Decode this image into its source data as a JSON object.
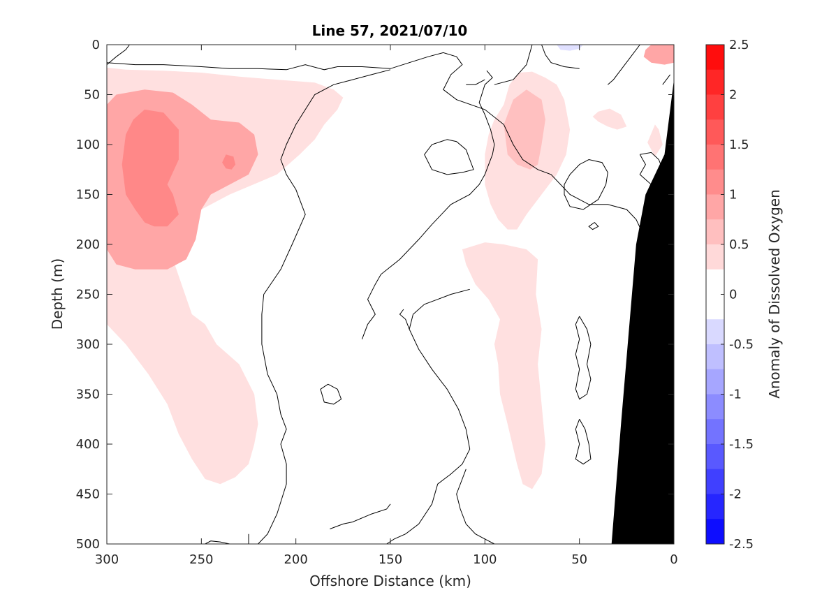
{
  "chart_data": {
    "type": "heatmap",
    "subtype": "filled-contour-section",
    "title": "Line 57, 2021/07/10",
    "xlabel": "Offshore Distance (km)",
    "ylabel": "Depth (m)",
    "colorbar_label": "Anomaly of Dissolved Oxygen",
    "xlim": [
      300,
      0
    ],
    "x_reversed": true,
    "ylim": [
      0,
      500
    ],
    "y_reversed": true,
    "x_ticks": [
      300,
      250,
      200,
      150,
      100,
      50,
      0
    ],
    "y_ticks": [
      0,
      50,
      100,
      150,
      200,
      250,
      300,
      350,
      400,
      450,
      500
    ],
    "colorbar": {
      "range": [
        -2.5,
        2.5
      ],
      "step": 0.25,
      "ticks": [
        2.5,
        2,
        1.5,
        1,
        0.5,
        0,
        -0.5,
        -1,
        -1.5,
        -2,
        -2.5
      ],
      "tick_labels": [
        "2.5",
        "2",
        "1.5",
        "1",
        "0.5",
        "0",
        "-0.5",
        "-1",
        "-1.5",
        "-2",
        "-2.5"
      ],
      "colormap": "blue-white-red"
    },
    "colors": {
      "level_0_25": "#ffe0e0",
      "level_0_5": "#ffc0c0",
      "level_0_75": "#ffa6a6",
      "level_1": "#ff8888",
      "negative": "#e0e0ff",
      "bathymetry": "#000000",
      "contour": "#000000"
    },
    "regions": [
      {
        "name": "offshore-positive-anomaly",
        "level": 0.25,
        "points": [
          [
            303,
            23
          ],
          [
            290,
            25
          ],
          [
            270,
            26
          ],
          [
            250,
            28
          ],
          [
            230,
            32
          ],
          [
            210,
            35
          ],
          [
            190,
            38
          ],
          [
            180,
            45
          ],
          [
            175,
            53
          ],
          [
            178,
            65
          ],
          [
            185,
            80
          ],
          [
            190,
            95
          ],
          [
            198,
            110
          ],
          [
            210,
            130
          ],
          [
            235,
            150
          ],
          [
            250,
            165
          ],
          [
            260,
            180
          ],
          [
            265,
            215
          ],
          [
            255,
            270
          ],
          [
            248,
            280
          ],
          [
            242,
            300
          ],
          [
            230,
            320
          ],
          [
            222,
            350
          ],
          [
            220,
            380
          ],
          [
            222,
            400
          ],
          [
            225,
            420
          ],
          [
            232,
            433
          ],
          [
            240,
            440
          ],
          [
            248,
            435
          ],
          [
            255,
            415
          ],
          [
            262,
            390
          ],
          [
            268,
            360
          ],
          [
            278,
            330
          ],
          [
            290,
            300
          ],
          [
            303,
            280
          ]
        ]
      },
      {
        "name": "nearshore-positive-anomaly",
        "level": 0.25,
        "points": [
          [
            95,
            75
          ],
          [
            90,
            60
          ],
          [
            87,
            40
          ],
          [
            82,
            28
          ],
          [
            75,
            27
          ],
          [
            68,
            33
          ],
          [
            62,
            40
          ],
          [
            58,
            55
          ],
          [
            55,
            85
          ],
          [
            57,
            110
          ],
          [
            62,
            130
          ],
          [
            70,
            150
          ],
          [
            78,
            170
          ],
          [
            83,
            185
          ],
          [
            88,
            185
          ],
          [
            93,
            175
          ],
          [
            97,
            160
          ],
          [
            100,
            140
          ],
          [
            100,
            110
          ],
          [
            98,
            90
          ]
        ]
      },
      {
        "name": "shelf-positive-anomaly",
        "level": 0.25,
        "points": [
          [
            40,
            77
          ],
          [
            35,
            82
          ],
          [
            30,
            85
          ],
          [
            25,
            82
          ],
          [
            28,
            70
          ],
          [
            34,
            64
          ],
          [
            40,
            67
          ],
          [
            43,
            72
          ]
        ]
      },
      {
        "name": "shelf-positive-anomaly-2",
        "level": 0.25,
        "points": [
          [
            10,
            80
          ],
          [
            14,
            98
          ],
          [
            10,
            112
          ],
          [
            6,
            100
          ],
          [
            8,
            85
          ]
        ]
      },
      {
        "name": "deep-positive-anomaly",
        "level": 0.25,
        "points": [
          [
            112,
            205
          ],
          [
            110,
            220
          ],
          [
            105,
            240
          ],
          [
            98,
            255
          ],
          [
            92,
            275
          ],
          [
            95,
            300
          ],
          [
            93,
            320
          ],
          [
            92,
            350
          ],
          [
            88,
            380
          ],
          [
            83,
            420
          ],
          [
            80,
            440
          ],
          [
            75,
            445
          ],
          [
            70,
            430
          ],
          [
            68,
            400
          ],
          [
            70,
            360
          ],
          [
            72,
            320
          ],
          [
            70,
            285
          ],
          [
            73,
            250
          ],
          [
            72,
            215
          ],
          [
            78,
            205
          ],
          [
            90,
            200
          ],
          [
            100,
            198
          ]
        ]
      },
      {
        "name": "offshore-positive-core",
        "level": 0.75,
        "points": [
          [
            300,
            60
          ],
          [
            295,
            50
          ],
          [
            280,
            45
          ],
          [
            265,
            48
          ],
          [
            255,
            60
          ],
          [
            245,
            75
          ],
          [
            230,
            78
          ],
          [
            222,
            90
          ],
          [
            220,
            110
          ],
          [
            225,
            130
          ],
          [
            235,
            140
          ],
          [
            245,
            150
          ],
          [
            250,
            165
          ],
          [
            253,
            195
          ],
          [
            258,
            215
          ],
          [
            268,
            225
          ],
          [
            285,
            225
          ],
          [
            295,
            220
          ],
          [
            300,
            205
          ]
        ]
      },
      {
        "name": "nearshore-positive-core",
        "level": 0.5,
        "points": [
          [
            90,
            80
          ],
          [
            85,
            55
          ],
          [
            78,
            45
          ],
          [
            70,
            55
          ],
          [
            68,
            75
          ],
          [
            70,
            100
          ],
          [
            72,
            120
          ],
          [
            76,
            125
          ],
          [
            83,
            120
          ],
          [
            88,
            110
          ]
        ]
      },
      {
        "name": "surface-positive-corner",
        "level": 0.75,
        "points": [
          [
            0,
            0
          ],
          [
            0,
            18
          ],
          [
            5,
            20
          ],
          [
            12,
            18
          ],
          [
            16,
            12
          ],
          [
            15,
            5
          ],
          [
            12,
            0
          ]
        ]
      },
      {
        "name": "offshore-peak",
        "level": 1,
        "points": [
          [
            280,
            65
          ],
          [
            270,
            68
          ],
          [
            262,
            85
          ],
          [
            262,
            115
          ],
          [
            268,
            140
          ],
          [
            265,
            150
          ],
          [
            262,
            170
          ],
          [
            268,
            182
          ],
          [
            275,
            182
          ],
          [
            280,
            178
          ],
          [
            285,
            165
          ],
          [
            290,
            150
          ],
          [
            292,
            120
          ],
          [
            290,
            90
          ],
          [
            286,
            75
          ]
        ]
      },
      {
        "name": "secondary-peak",
        "level": 1,
        "points": [
          [
            237,
            110
          ],
          [
            233,
            112
          ],
          [
            232,
            120
          ],
          [
            234,
            125
          ],
          [
            237,
            124
          ],
          [
            239,
            118
          ]
        ]
      },
      {
        "name": "surface-negative",
        "level": -0.25,
        "points": [
          [
            62,
            0
          ],
          [
            60,
            5
          ],
          [
            55,
            6
          ],
          [
            50,
            4
          ],
          [
            48,
            0
          ]
        ]
      }
    ],
    "bathymetry": [
      [
        33,
        500
      ],
      [
        28,
        380
      ],
      [
        20,
        200
      ],
      [
        15,
        150
      ],
      [
        5,
        110
      ],
      [
        0,
        35
      ],
      [
        0,
        500
      ]
    ]
  }
}
